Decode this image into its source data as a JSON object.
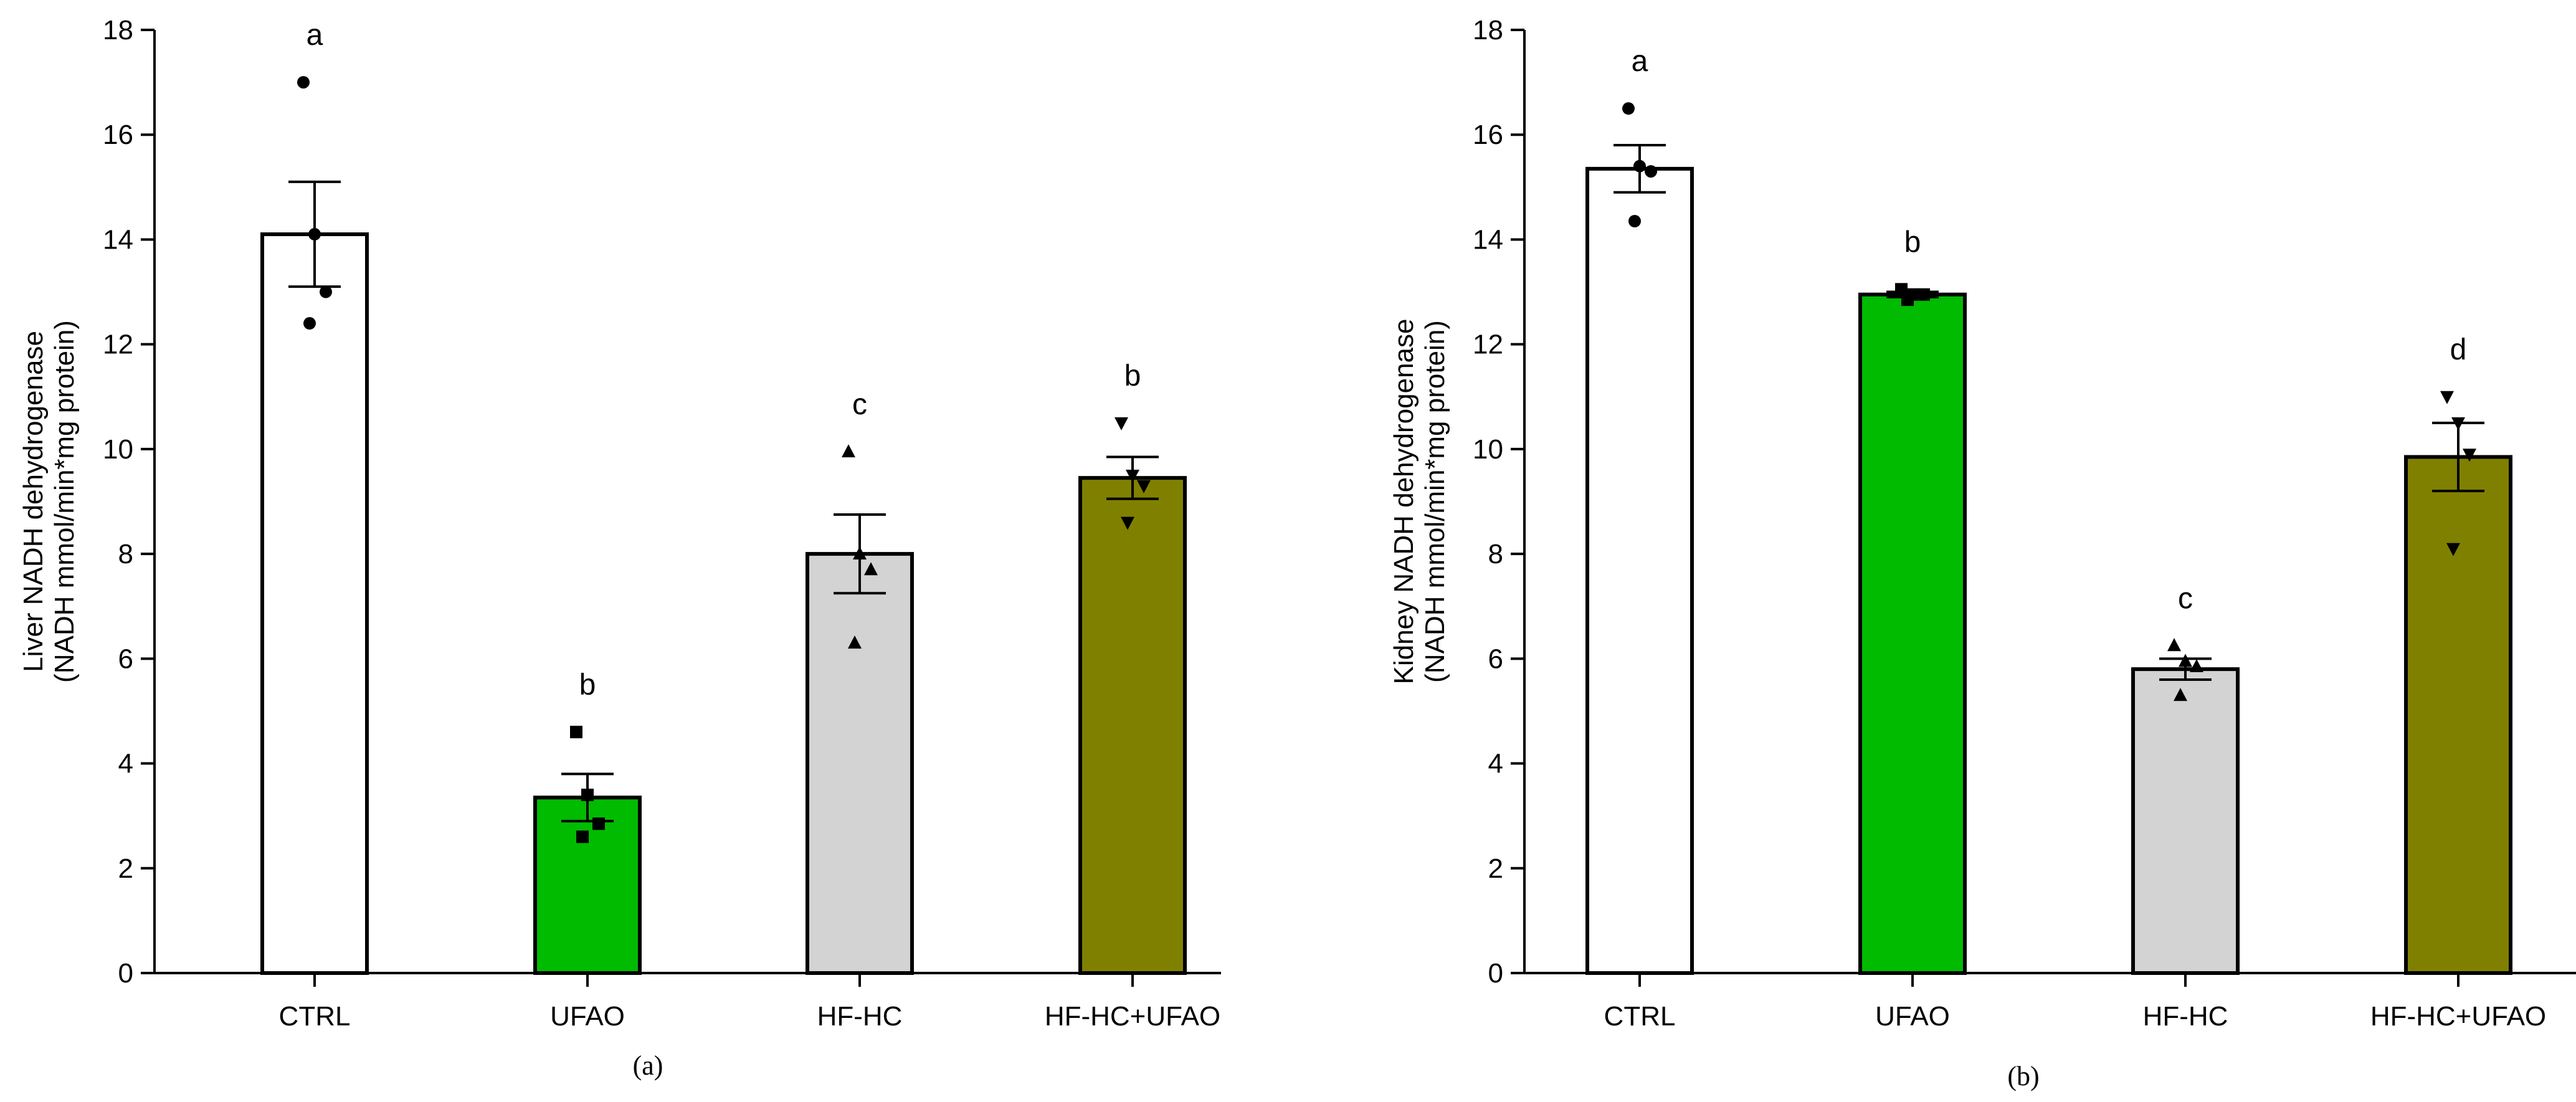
{
  "figure": {
    "caption_a": "(a)",
    "caption_b": "(b)"
  },
  "colors": {
    "CTRL": "#ffffff",
    "UFAO": "#00bb00",
    "HF-HC": "#d3d3d3",
    "HF-HC+UFAO": "#808000"
  },
  "markers": {
    "CTRL": "circle",
    "UFAO": "square",
    "HF-HC": "triangle-up",
    "HF-HC+UFAO": "triangle-down"
  },
  "chart_data": [
    {
      "type": "bar",
      "panel": "(a)",
      "title": "",
      "xlabel": "",
      "ylabel_line1": "Liver NADH dehydrogenase",
      "ylabel_line2": "(NADH mmol/min*mg protein)",
      "categories": [
        "CTRL",
        "UFAO",
        "HF-HC",
        "HF-HC+UFAO"
      ],
      "values": [
        14.1,
        3.35,
        8.0,
        9.45
      ],
      "errors": [
        1.0,
        0.45,
        0.75,
        0.4
      ],
      "letters": [
        "a",
        "b",
        "c",
        "b"
      ],
      "points": [
        [
          17.0,
          14.1,
          13.0,
          12.4
        ],
        [
          4.6,
          3.4,
          2.85,
          2.6
        ],
        [
          9.95,
          8.0,
          7.7,
          6.3
        ],
        [
          10.5,
          9.5,
          9.3,
          8.6
        ]
      ],
      "ylim": [
        0,
        18
      ],
      "yticks": [
        0,
        2,
        4,
        6,
        8,
        10,
        12,
        14,
        16,
        18
      ],
      "grid": false
    },
    {
      "type": "bar",
      "panel": "(b)",
      "title": "",
      "xlabel": "",
      "ylabel_line1": "Kidney NADH dehydrogenase",
      "ylabel_line2": "(NADH mmol/min*mg protein)",
      "categories": [
        "CTRL",
        "UFAO",
        "HF-HC",
        "HF-HC+UFAO"
      ],
      "values": [
        15.35,
        12.95,
        5.8,
        9.85
      ],
      "errors": [
        0.45,
        0.05,
        0.2,
        0.65
      ],
      "letters": [
        "a",
        "b",
        "c",
        "d"
      ],
      "points": [
        [
          16.5,
          15.4,
          15.3,
          14.35
        ],
        [
          13.05,
          12.95,
          12.95,
          12.85
        ],
        [
          6.25,
          5.95,
          5.85,
          5.3
        ],
        [
          11.0,
          10.5,
          9.9,
          8.1
        ]
      ],
      "ylim": [
        0,
        18
      ],
      "yticks": [
        0,
        2,
        4,
        6,
        8,
        10,
        12,
        14,
        16,
        18
      ],
      "grid": false
    }
  ]
}
